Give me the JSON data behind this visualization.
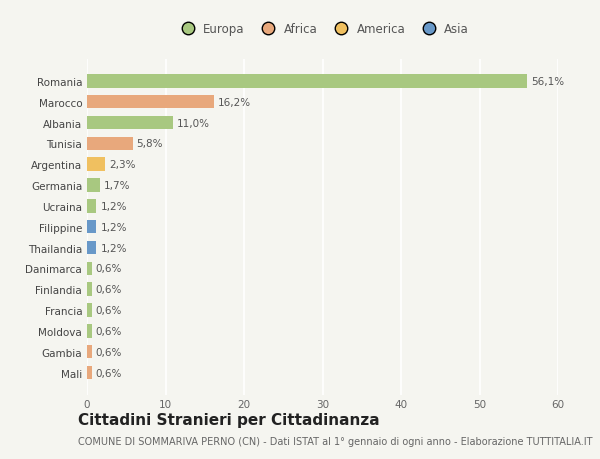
{
  "countries": [
    "Romania",
    "Marocco",
    "Albania",
    "Tunisia",
    "Argentina",
    "Germania",
    "Ucraina",
    "Filippine",
    "Thailandia",
    "Danimarca",
    "Finlandia",
    "Francia",
    "Moldova",
    "Gambia",
    "Mali"
  ],
  "values": [
    56.1,
    16.2,
    11.0,
    5.8,
    2.3,
    1.7,
    1.2,
    1.2,
    1.2,
    0.6,
    0.6,
    0.6,
    0.6,
    0.6,
    0.6
  ],
  "labels": [
    "56,1%",
    "16,2%",
    "11,0%",
    "5,8%",
    "2,3%",
    "1,7%",
    "1,2%",
    "1,2%",
    "1,2%",
    "0,6%",
    "0,6%",
    "0,6%",
    "0,6%",
    "0,6%",
    "0,6%"
  ],
  "continents": [
    "Europa",
    "Africa",
    "Europa",
    "Africa",
    "America",
    "Europa",
    "Europa",
    "Asia",
    "Asia",
    "Europa",
    "Europa",
    "Europa",
    "Europa",
    "Africa",
    "Africa"
  ],
  "continent_colors": {
    "Europa": "#a8c880",
    "Africa": "#e8a87c",
    "America": "#f0c060",
    "Asia": "#6898c8"
  },
  "legend_order": [
    "Europa",
    "Africa",
    "America",
    "Asia"
  ],
  "xlim": [
    0,
    60
  ],
  "xticks": [
    0,
    10,
    20,
    30,
    40,
    50,
    60
  ],
  "title": "Cittadini Stranieri per Cittadinanza",
  "subtitle": "COMUNE DI SOMMARIVA PERNO (CN) - Dati ISTAT al 1° gennaio di ogni anno - Elaborazione TUTTITALIA.IT",
  "background_color": "#f5f5f0",
  "bar_height": 0.65,
  "title_fontsize": 11,
  "subtitle_fontsize": 7,
  "label_fontsize": 7.5,
  "tick_fontsize": 7.5,
  "legend_fontsize": 8.5
}
